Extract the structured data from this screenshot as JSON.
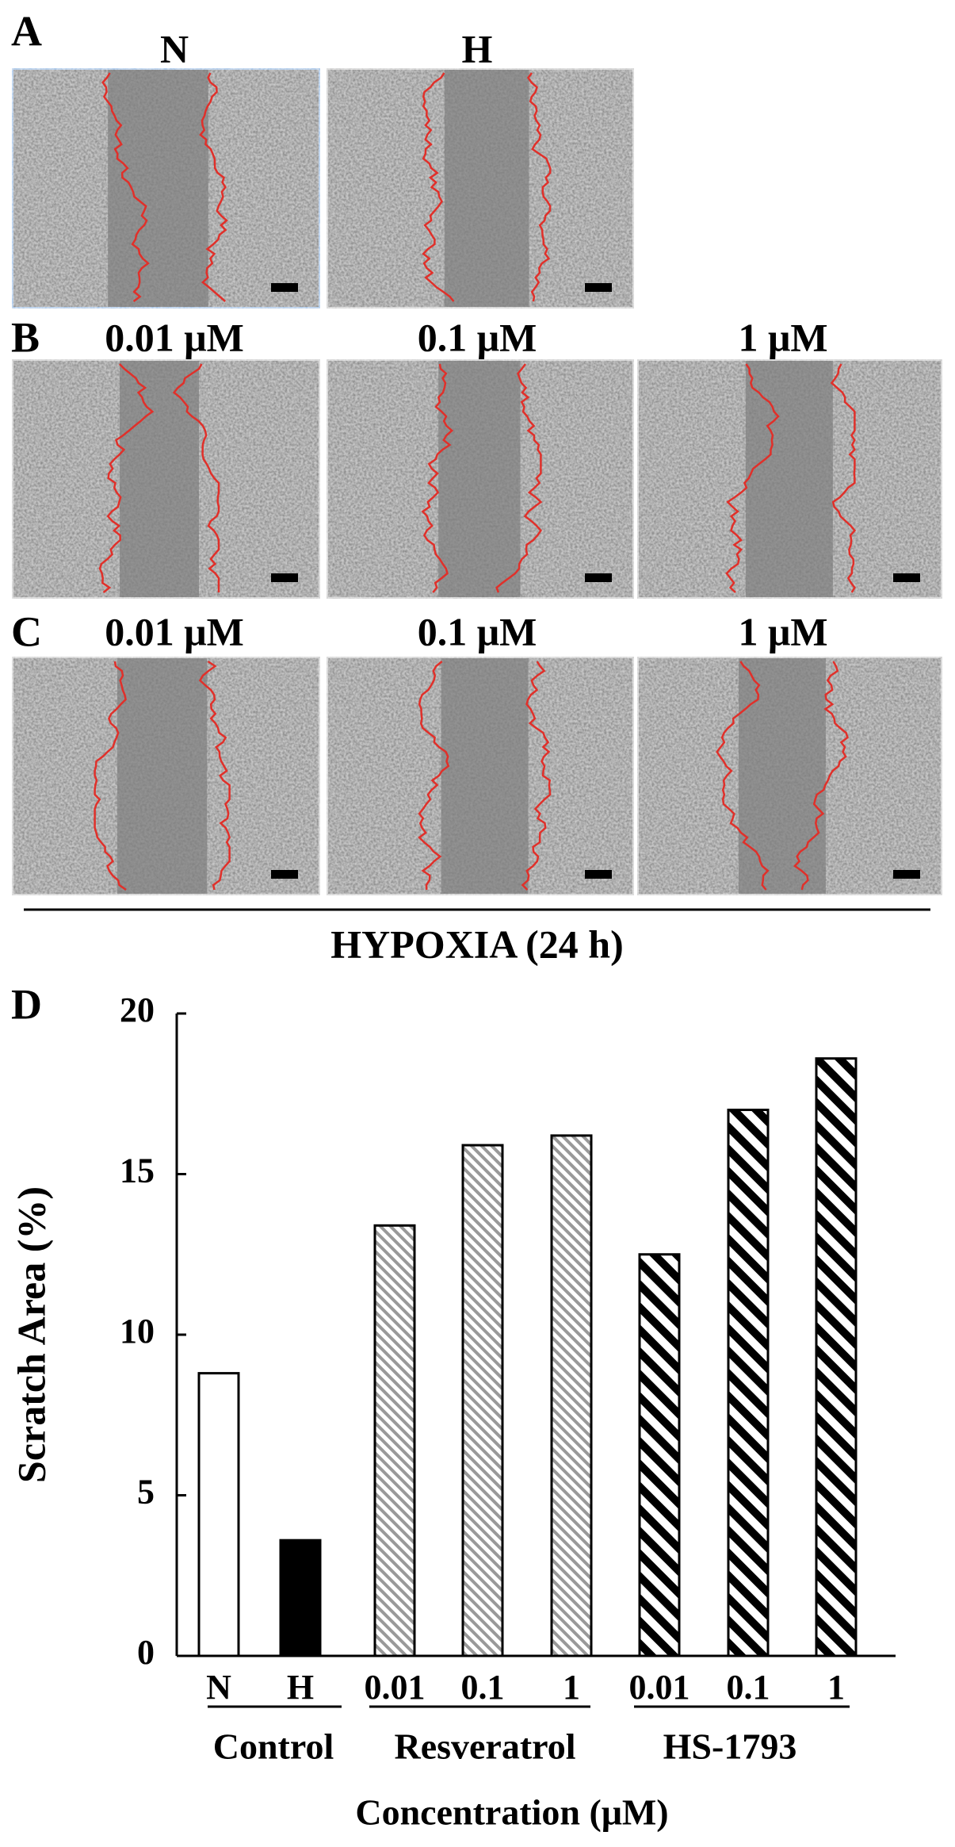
{
  "figure": {
    "panel_labels": [
      "A",
      "B",
      "C",
      "D"
    ],
    "row_a_headers": [
      "N",
      "H"
    ],
    "row_b_headers": [
      "0.01 μM",
      "0.1 μM",
      "1 μM"
    ],
    "row_c_headers": [
      "0.01 μM",
      "0.1 μM",
      "1 μM"
    ],
    "condition": "HYPOXIA (24 h)"
  },
  "chart_data": {
    "type": "bar",
    "y_label": "Scratch Area (%)",
    "x_label": "Concentration (μM)",
    "categories": [
      "N",
      "H",
      "0.01",
      "0.1",
      "1",
      "0.01",
      "0.1",
      "1"
    ],
    "values": [
      8.8,
      3.6,
      13.4,
      15.9,
      16.2,
      12.5,
      17.0,
      18.6
    ],
    "bar_fills": [
      "white",
      "black",
      "hatch-fine",
      "hatch-fine",
      "hatch-fine",
      "hatch-bold",
      "hatch-bold",
      "hatch-bold"
    ],
    "group_labels": [
      "Control",
      "Resveratrol",
      "HS-1793"
    ],
    "ylim": [
      0,
      20
    ],
    "yticks": [
      0,
      5,
      10,
      15,
      20
    ]
  }
}
